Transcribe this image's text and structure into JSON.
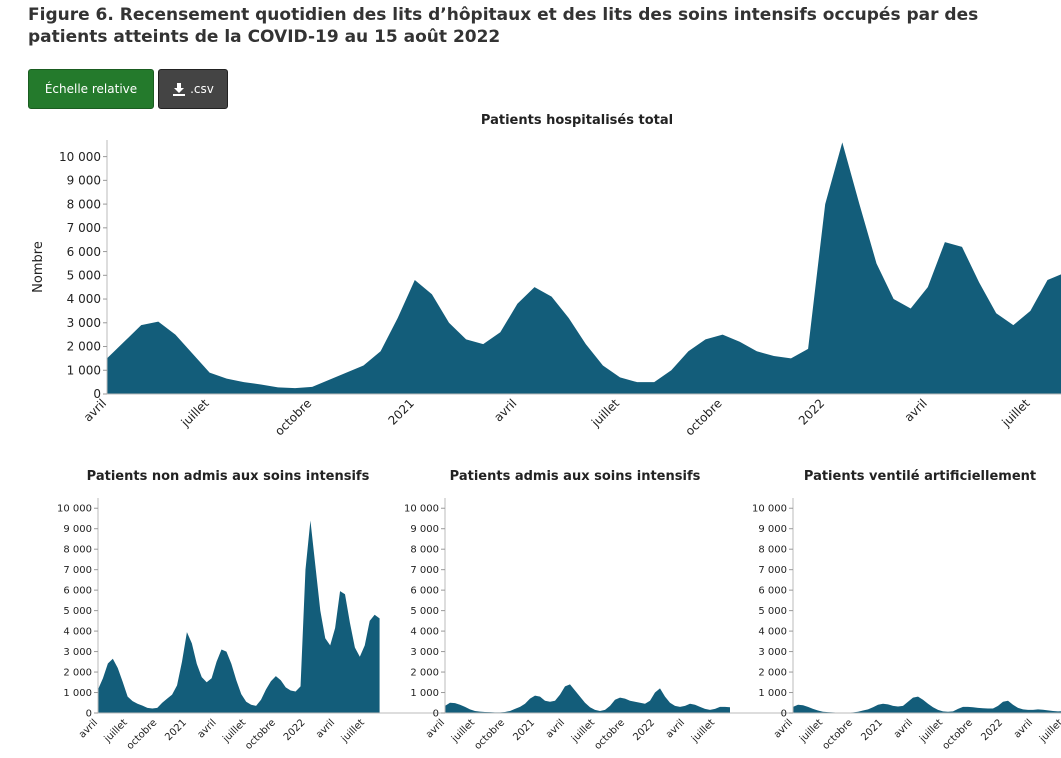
{
  "title": "Figure 6. Recensement quotidien des lits d’hôpitaux et des lits des soins intensifs occupés par des patients atteints de la COVID-19 au 15 août 2022",
  "buttons": [
    "Échelle relative",
    ".csv"
  ],
  "chart_data": [
    {
      "type": "area",
      "title": "Patients hospitalisés total",
      "ylabel": "Nombre",
      "color": "#135d7a",
      "categories": [
        "avril",
        null,
        null,
        null,
        null,
        null,
        "juillet",
        null,
        null,
        null,
        null,
        null,
        "octobre",
        null,
        null,
        null,
        null,
        null,
        "2021",
        null,
        null,
        null,
        null,
        null,
        "avril",
        null,
        null,
        null,
        null,
        null,
        "juillet",
        null,
        null,
        null,
        null,
        null,
        "octobre",
        null,
        null,
        null,
        null,
        null,
        "2022",
        null,
        null,
        null,
        null,
        null,
        "avril",
        null,
        null,
        null,
        null,
        null,
        "juillet",
        null,
        null,
        null
      ],
      "values": [
        1500,
        2200,
        2900,
        3050,
        2500,
        1700,
        900,
        650,
        500,
        400,
        280,
        250,
        300,
        600,
        900,
        1200,
        1800,
        3200,
        4800,
        4200,
        3000,
        2300,
        2100,
        2600,
        3800,
        4500,
        4100,
        3200,
        2100,
        1200,
        700,
        500,
        500,
        1000,
        1800,
        2300,
        2500,
        2200,
        1800,
        1600,
        1500,
        1900,
        8000,
        10600,
        8000,
        5500,
        4000,
        3600,
        4500,
        6400,
        6200,
        4700,
        3400,
        2900,
        3500,
        4800,
        5100,
        4900
      ],
      "ylim": [
        0,
        10700
      ],
      "yticks": [
        0,
        {
          "value": 1000,
          "label": "1 000"
        },
        {
          "value": 2000,
          "label": "2 000"
        },
        {
          "value": 3000,
          "label": "3 000"
        },
        {
          "value": 4000,
          "label": "4 000"
        },
        {
          "value": 5000,
          "label": "5 000"
        },
        {
          "value": 6000,
          "label": "6 000"
        },
        {
          "value": 7000,
          "label": "7 000"
        },
        {
          "value": 8000,
          "label": "8 000"
        },
        {
          "value": 9000,
          "label": "9 000"
        },
        {
          "value": 10000,
          "label": "10 000"
        }
      ],
      "grid": false
    },
    {
      "type": "area",
      "title": "Patients non admis aux soins intensifs",
      "color": "#135d7a",
      "categories": [
        "avril",
        null,
        null,
        null,
        null,
        null,
        "juillet",
        null,
        null,
        null,
        null,
        null,
        "octobre",
        null,
        null,
        null,
        null,
        null,
        "2021",
        null,
        null,
        null,
        null,
        null,
        "avril",
        null,
        null,
        null,
        null,
        null,
        "juillet",
        null,
        null,
        null,
        null,
        null,
        "octobre",
        null,
        null,
        null,
        null,
        null,
        "2022",
        null,
        null,
        null,
        null,
        null,
        "avril",
        null,
        null,
        null,
        null,
        null,
        "juillet",
        null,
        null,
        null
      ],
      "values": [
        1150,
        1700,
        2420,
        2650,
        2200,
        1520,
        800,
        580,
        450,
        360,
        250,
        220,
        250,
        500,
        700,
        900,
        1350,
        2500,
        3950,
        3400,
        2400,
        1750,
        1500,
        1700,
        2500,
        3100,
        3000,
        2400,
        1600,
        920,
        550,
        400,
        350,
        650,
        1150,
        1550,
        1800,
        1600,
        1250,
        1100,
        1050,
        1300,
        7000,
        9400,
        7200,
        5000,
        3650,
        3300,
        4150,
        5950,
        5800,
        4400,
        3200,
        2750,
        3300,
        4500,
        4800,
        4620
      ],
      "ylim": [
        0,
        10500
      ],
      "yticks": [
        0,
        {
          "value": 1000,
          "label": "1 000"
        },
        {
          "value": 2000,
          "label": "2 000"
        },
        {
          "value": 3000,
          "label": "3 000"
        },
        {
          "value": 4000,
          "label": "4 000"
        },
        {
          "value": 5000,
          "label": "5 000"
        },
        {
          "value": 6000,
          "label": "6 000"
        },
        {
          "value": 7000,
          "label": "7 000"
        },
        {
          "value": 8000,
          "label": "8 000"
        },
        {
          "value": 9000,
          "label": "9 000"
        },
        {
          "value": 10000,
          "label": "10 000"
        }
      ],
      "grid": false
    },
    {
      "type": "area",
      "title": "Patients admis aux soins intensifs",
      "color": "#135d7a",
      "categories": [
        "avril",
        null,
        null,
        null,
        null,
        null,
        "juillet",
        null,
        null,
        null,
        null,
        null,
        "octobre",
        null,
        null,
        null,
        null,
        null,
        "2021",
        null,
        null,
        null,
        null,
        null,
        "avril",
        null,
        null,
        null,
        null,
        null,
        "juillet",
        null,
        null,
        null,
        null,
        null,
        "octobre",
        null,
        null,
        null,
        null,
        null,
        "2022",
        null,
        null,
        null,
        null,
        null,
        "avril",
        null,
        null,
        null,
        null,
        null,
        "juillet",
        null,
        null,
        null
      ],
      "values": [
        350,
        500,
        480,
        400,
        300,
        180,
        100,
        70,
        50,
        40,
        30,
        30,
        50,
        100,
        200,
        300,
        450,
        700,
        850,
        800,
        600,
        550,
        600,
        900,
        1300,
        1400,
        1100,
        800,
        500,
        280,
        150,
        100,
        150,
        350,
        650,
        750,
        700,
        600,
        550,
        500,
        450,
        600,
        1000,
        1200,
        800,
        500,
        350,
        300,
        350,
        450,
        400,
        300,
        200,
        150,
        200,
        300,
        300,
        280
      ],
      "ylim": [
        0,
        10500
      ],
      "yticks": [
        0,
        {
          "value": 1000,
          "label": "1 000"
        },
        {
          "value": 2000,
          "label": "2 000"
        },
        {
          "value": 3000,
          "label": "3 000"
        },
        {
          "value": 4000,
          "label": "4 000"
        },
        {
          "value": 5000,
          "label": "5 000"
        },
        {
          "value": 6000,
          "label": "6 000"
        },
        {
          "value": 7000,
          "label": "7 000"
        },
        {
          "value": 8000,
          "label": "8 000"
        },
        {
          "value": 9000,
          "label": "9 000"
        },
        {
          "value": 10000,
          "label": "10 000"
        }
      ],
      "grid": false
    },
    {
      "type": "area",
      "title": "Patients ventilé artificiellement",
      "color": "#135d7a",
      "categories": [
        "avril",
        null,
        null,
        null,
        null,
        null,
        "juillet",
        null,
        null,
        null,
        null,
        null,
        "octobre",
        null,
        null,
        null,
        null,
        null,
        "2021",
        null,
        null,
        null,
        null,
        null,
        "avril",
        null,
        null,
        null,
        null,
        null,
        "juillet",
        null,
        null,
        null,
        null,
        null,
        "octobre",
        null,
        null,
        null,
        null,
        null,
        "2022",
        null,
        null,
        null,
        null,
        null,
        "avril",
        null,
        null,
        null,
        null,
        null,
        "juillet",
        null,
        null,
        null
      ],
      "values": [
        300,
        400,
        380,
        300,
        200,
        120,
        60,
        40,
        30,
        20,
        20,
        20,
        30,
        60,
        120,
        180,
        280,
        400,
        450,
        420,
        350,
        320,
        350,
        550,
        750,
        800,
        650,
        450,
        280,
        150,
        80,
        60,
        80,
        200,
        300,
        300,
        280,
        250,
        230,
        220,
        220,
        350,
        550,
        600,
        400,
        250,
        180,
        150,
        150,
        180,
        160,
        130,
        100,
        80,
        90,
        110,
        120,
        110
      ],
      "ylim": [
        0,
        10500
      ],
      "yticks": [
        0,
        {
          "value": 1000,
          "label": "1 000"
        },
        {
          "value": 2000,
          "label": "2 000"
        },
        {
          "value": 3000,
          "label": "3 000"
        },
        {
          "value": 4000,
          "label": "4 000"
        },
        {
          "value": 5000,
          "label": "5 000"
        },
        {
          "value": 6000,
          "label": "6 000"
        },
        {
          "value": 7000,
          "label": "7 000"
        },
        {
          "value": 8000,
          "label": "8 000"
        },
        {
          "value": 9000,
          "label": "9 000"
        },
        {
          "value": 10000,
          "label": "10 000"
        }
      ],
      "grid": false
    }
  ]
}
